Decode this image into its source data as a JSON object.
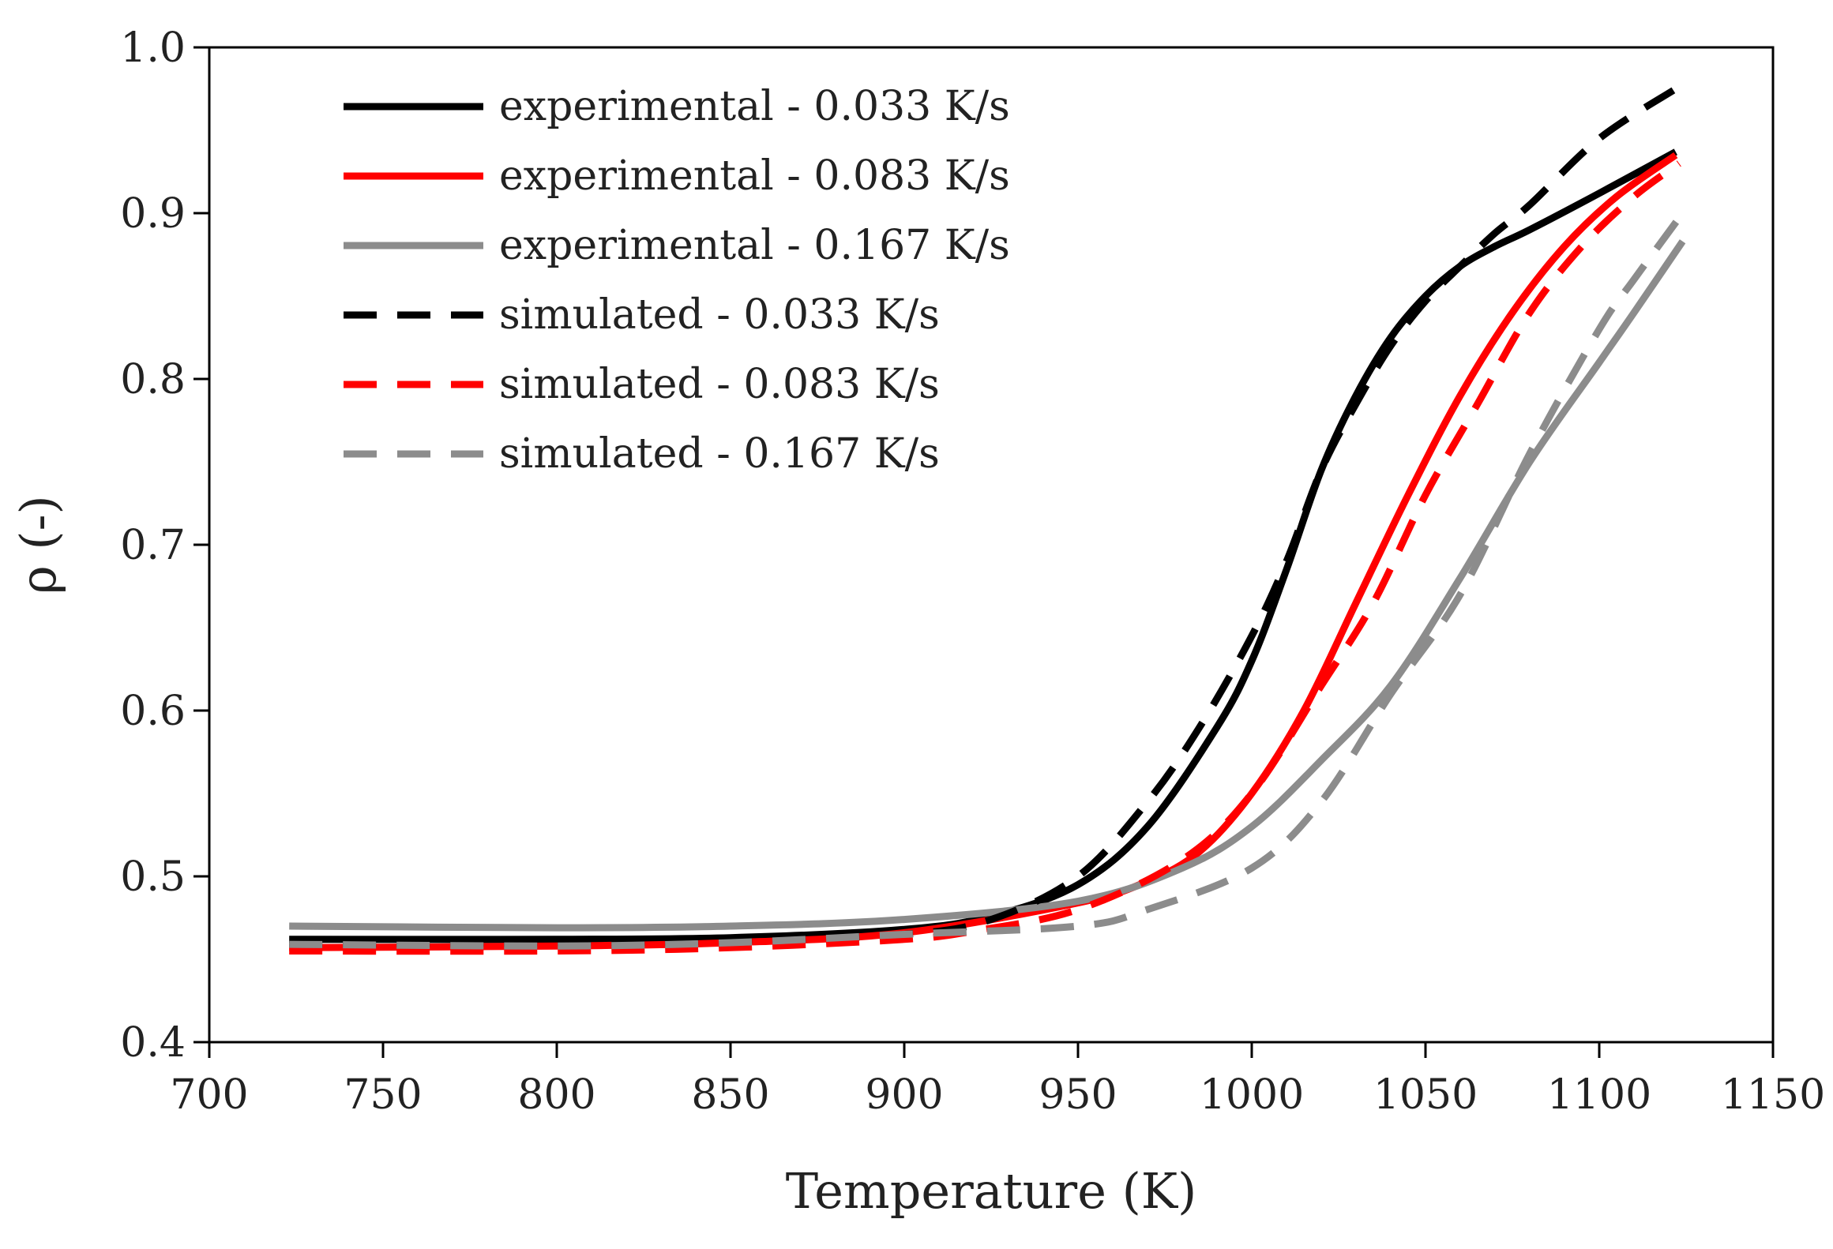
{
  "chart_data": {
    "type": "line",
    "title": "",
    "xlabel": "Temperature (K)",
    "ylabel": "ρ (-)",
    "xlim": [
      700,
      1150
    ],
    "ylim": [
      0.4,
      1.0
    ],
    "xticks": [
      700,
      750,
      800,
      850,
      900,
      950,
      1000,
      1050,
      1100,
      1150
    ],
    "yticks": [
      0.4,
      0.5,
      0.6,
      0.7,
      0.8,
      0.9,
      1.0
    ],
    "xtick_labels": [
      "700",
      "750",
      "800",
      "850",
      "900",
      "950",
      "1000",
      "1050",
      "1100",
      "1150"
    ],
    "ytick_labels": [
      "0.4",
      "0.5",
      "0.6",
      "0.7",
      "0.8",
      "0.9",
      "1.0"
    ],
    "grid": false,
    "legend_position": "top-left",
    "series": [
      {
        "name": "experimental - 0.033 K/s",
        "color": "#000000",
        "dash": "solid",
        "points": [
          [
            723,
            0.462
          ],
          [
            800,
            0.462
          ],
          [
            850,
            0.463
          ],
          [
            900,
            0.468
          ],
          [
            925,
            0.476
          ],
          [
            950,
            0.495
          ],
          [
            970,
            0.53
          ],
          [
            990,
            0.59
          ],
          [
            1000,
            0.63
          ],
          [
            1010,
            0.685
          ],
          [
            1020,
            0.745
          ],
          [
            1030,
            0.79
          ],
          [
            1040,
            0.825
          ],
          [
            1050,
            0.85
          ],
          [
            1060,
            0.868
          ],
          [
            1070,
            0.88
          ],
          [
            1080,
            0.89
          ],
          [
            1100,
            0.912
          ],
          [
            1122,
            0.937
          ]
        ]
      },
      {
        "name": "experimental - 0.083 K/s",
        "color": "#ff0000",
        "dash": "solid",
        "points": [
          [
            723,
            0.457
          ],
          [
            800,
            0.458
          ],
          [
            850,
            0.46
          ],
          [
            900,
            0.466
          ],
          [
            950,
            0.484
          ],
          [
            970,
            0.497
          ],
          [
            985,
            0.515
          ],
          [
            1000,
            0.55
          ],
          [
            1015,
            0.6
          ],
          [
            1030,
            0.665
          ],
          [
            1045,
            0.73
          ],
          [
            1060,
            0.79
          ],
          [
            1075,
            0.84
          ],
          [
            1090,
            0.88
          ],
          [
            1105,
            0.91
          ],
          [
            1122,
            0.935
          ]
        ]
      },
      {
        "name": "experimental - 0.167 K/s",
        "color": "#8c8c8c",
        "dash": "solid",
        "points": [
          [
            723,
            0.47
          ],
          [
            800,
            0.469
          ],
          [
            850,
            0.47
          ],
          [
            900,
            0.474
          ],
          [
            950,
            0.485
          ],
          [
            980,
            0.505
          ],
          [
            1000,
            0.53
          ],
          [
            1020,
            0.57
          ],
          [
            1040,
            0.615
          ],
          [
            1060,
            0.68
          ],
          [
            1080,
            0.75
          ],
          [
            1100,
            0.81
          ],
          [
            1110,
            0.84
          ],
          [
            1124,
            0.883
          ]
        ]
      },
      {
        "name": "simulated - 0.033 K/s",
        "color": "#000000",
        "dash": "dashed",
        "points": [
          [
            723,
            0.459
          ],
          [
            800,
            0.46
          ],
          [
            850,
            0.461
          ],
          [
            900,
            0.465
          ],
          [
            925,
            0.474
          ],
          [
            950,
            0.5
          ],
          [
            970,
            0.545
          ],
          [
            985,
            0.59
          ],
          [
            1000,
            0.645
          ],
          [
            1010,
            0.69
          ],
          [
            1020,
            0.745
          ],
          [
            1030,
            0.785
          ],
          [
            1040,
            0.82
          ],
          [
            1050,
            0.847
          ],
          [
            1060,
            0.868
          ],
          [
            1070,
            0.888
          ],
          [
            1080,
            0.905
          ],
          [
            1100,
            0.945
          ],
          [
            1122,
            0.975
          ]
        ]
      },
      {
        "name": "simulated - 0.083 K/s",
        "color": "#ff0000",
        "dash": "dashed",
        "points": [
          [
            723,
            0.455
          ],
          [
            800,
            0.455
          ],
          [
            850,
            0.457
          ],
          [
            900,
            0.462
          ],
          [
            920,
            0.467
          ],
          [
            950,
            0.48
          ],
          [
            980,
            0.51
          ],
          [
            1000,
            0.55
          ],
          [
            1020,
            0.615
          ],
          [
            1035,
            0.665
          ],
          [
            1050,
            0.73
          ],
          [
            1065,
            0.785
          ],
          [
            1080,
            0.84
          ],
          [
            1095,
            0.88
          ],
          [
            1110,
            0.91
          ],
          [
            1123,
            0.93
          ]
        ]
      },
      {
        "name": "simulated - 0.167 K/s",
        "color": "#8c8c8c",
        "dash": "dashed",
        "points": [
          [
            723,
            0.459
          ],
          [
            800,
            0.458
          ],
          [
            850,
            0.46
          ],
          [
            900,
            0.465
          ],
          [
            950,
            0.47
          ],
          [
            970,
            0.48
          ],
          [
            1000,
            0.505
          ],
          [
            1020,
            0.545
          ],
          [
            1040,
            0.61
          ],
          [
            1060,
            0.67
          ],
          [
            1080,
            0.755
          ],
          [
            1100,
            0.83
          ],
          [
            1110,
            0.86
          ],
          [
            1124,
            0.9
          ]
        ]
      }
    ]
  }
}
